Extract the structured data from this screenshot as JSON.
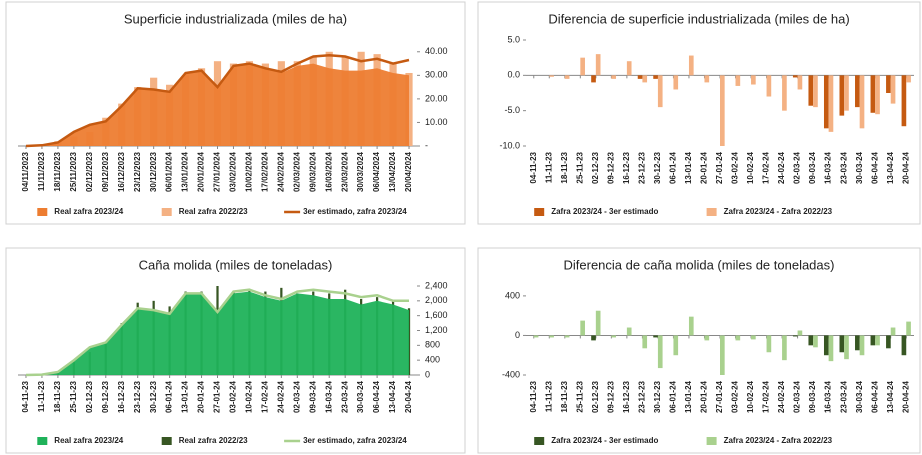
{
  "chart_data": [
    {
      "type": "combo",
      "title": "Superficie industrializada (miles de ha)",
      "categories": [
        "04/11/2023",
        "11/11/2023",
        "18/11/2023",
        "25/11/2023",
        "02/12/2023",
        "09/12/2023",
        "16/12/2023",
        "23/12/2023",
        "30/12/2023",
        "06/01/2024",
        "13/01/2024",
        "20/01/2024",
        "27/01/2024",
        "03/02/2024",
        "10/02/2024",
        "17/02/2024",
        "24/02/2024",
        "02/03/2024",
        "09/03/2024",
        "16/03/2024",
        "23/03/2024",
        "30/03/2024",
        "06/04/2024",
        "13/04/2024",
        "20/04/2024"
      ],
      "series": [
        {
          "name": "Real zafra 2022/23",
          "kind": "bar",
          "color": "#f4b183",
          "values": [
            0,
            0.5,
            2,
            4,
            6,
            12,
            18,
            25,
            29,
            26,
            30,
            33,
            36,
            35,
            36,
            35,
            36,
            36,
            38,
            40,
            38,
            40,
            39,
            35,
            31
          ]
        },
        {
          "name": "Real zafra 2023/24",
          "kind": "area",
          "color": "#ed7d31",
          "values": [
            0,
            0.3,
            1.5,
            6,
            9,
            10.5,
            17,
            24,
            24,
            23,
            31,
            32,
            25,
            34,
            34.5,
            33,
            31,
            34,
            35,
            33,
            32,
            32,
            33,
            31,
            30
          ]
        },
        {
          "name": "3er estimado, zafra 2023/24",
          "kind": "line",
          "color": "#c55a11",
          "values": [
            0,
            0.3,
            1.5,
            6,
            9,
            10.5,
            17,
            24.5,
            24,
            23,
            31,
            32,
            25,
            34,
            35,
            33,
            31.5,
            35,
            38,
            38.5,
            38,
            36,
            37,
            35,
            36.5
          ]
        }
      ],
      "ylim": [
        0,
        45
      ],
      "yticks": [
        {
          "value": 0,
          "label": "-"
        },
        {
          "value": 10,
          "label": "10.00"
        },
        {
          "value": 20,
          "label": "20.00"
        },
        {
          "value": 30,
          "label": "30.00"
        },
        {
          "value": 40,
          "label": "40.00"
        }
      ],
      "grid": false
    },
    {
      "type": "bar",
      "title": "Diferencia de superficie industrializada (miles de ha)",
      "categories": [
        "04-11-23",
        "11-11-23",
        "18-11-23",
        "25-11-23",
        "02-12-23",
        "09-12-23",
        "16-12-23",
        "23-12-23",
        "30-12-23",
        "06-01-24",
        "13-01-24",
        "20-01-24",
        "27-01-24",
        "03-02-24",
        "10-02-24",
        "17-02-24",
        "24-02-24",
        "02-03-24",
        "09-03-24",
        "16-03-24",
        "23-03-24",
        "30-03-24",
        "06-04-24",
        "13-04-24",
        "20-04-24"
      ],
      "series": [
        {
          "name": "Zafra 2023/24 - 3er estimado",
          "color": "#c55a11",
          "values": [
            0,
            0,
            0,
            0,
            -1,
            0,
            0,
            -0.5,
            -0.5,
            0,
            0,
            0,
            0,
            0,
            0,
            0,
            0,
            -0.3,
            -4.3,
            -7.5,
            -5.7,
            -4.5,
            -5.3,
            -2.5,
            -7.2
          ]
        },
        {
          "name": "Zafra 2023/24 - Zafra 2022/23",
          "color": "#f4b183",
          "values": [
            0,
            -0.2,
            -0.5,
            2.5,
            3,
            -0.5,
            2,
            -1,
            -4.5,
            -2,
            2.8,
            -1,
            -10,
            -1.5,
            -1.3,
            -3,
            -5,
            -2,
            -4.5,
            -8,
            -5,
            -7.5,
            -5.5,
            -4,
            -1
          ]
        }
      ],
      "ylim": [
        -10,
        5
      ],
      "yticks": [
        {
          "value": 5,
          "label": "5.0"
        },
        {
          "value": 0,
          "label": "0.0"
        },
        {
          "value": -5,
          "label": "-5.0"
        },
        {
          "value": -10,
          "label": "-10.0"
        }
      ],
      "grid": false
    },
    {
      "type": "combo",
      "title": "Caña molida (miles de toneladas)",
      "categories": [
        "04-11-23",
        "11-11-23",
        "18-11-23",
        "25-11-23",
        "02-12-23",
        "09-12-23",
        "16-12-23",
        "23-12-23",
        "30-12-23",
        "06-01-24",
        "13-01-24",
        "20-01-24",
        "27-01-24",
        "03-02-24",
        "10-02-24",
        "17-02-24",
        "24-02-24",
        "02-03-24",
        "09-03-24",
        "16-03-24",
        "23-03-24",
        "30-03-24",
        "06-04-24",
        "13-04-24",
        "20-04-24"
      ],
      "series": [
        {
          "name": "Real zafra 2022/23",
          "kind": "bar",
          "color": "#375623",
          "values": [
            0,
            30,
            100,
            350,
            620,
            850,
            1400,
            1950,
            2000,
            1850,
            2250,
            2250,
            2400,
            2250,
            2300,
            2250,
            2350,
            2200,
            2250,
            2200,
            2300,
            2050,
            2100,
            2000,
            1800
          ]
        },
        {
          "name": "Real zafra 2023/24",
          "kind": "area",
          "color": "#1fb25a",
          "values": [
            0,
            10,
            80,
            400,
            750,
            880,
            1350,
            1800,
            1750,
            1650,
            2200,
            2200,
            1700,
            2200,
            2250,
            2100,
            2000,
            2200,
            2150,
            2050,
            2050,
            1900,
            2000,
            1900,
            1750
          ]
        },
        {
          "name": "3er estimado, zafra 2023/24",
          "kind": "line",
          "color": "#a9d18e",
          "values": [
            0,
            10,
            80,
            400,
            750,
            880,
            1350,
            1800,
            1750,
            1650,
            2200,
            2200,
            1700,
            2250,
            2300,
            2150,
            2050,
            2250,
            2300,
            2250,
            2200,
            2100,
            2150,
            2000,
            2000
          ]
        }
      ],
      "ylim": [
        0,
        2400
      ],
      "yticks": [
        0,
        400,
        800,
        {
          "value": 1200,
          "label": "1,200"
        },
        {
          "value": 1600,
          "label": "1,600"
        },
        {
          "value": 2000,
          "label": "2,000"
        },
        {
          "value": 2400,
          "label": "2,400"
        }
      ],
      "grid": false
    },
    {
      "type": "bar",
      "title": "Diferencia de caña molida (miles de toneladas)",
      "categories": [
        "04-11-23",
        "11-11-23",
        "18-11-23",
        "25-11-23",
        "02-12-23",
        "09-12-23",
        "16-12-23",
        "23-12-23",
        "30-12-23",
        "06-01-24",
        "13-01-24",
        "20-01-24",
        "27-01-24",
        "03-02-24",
        "10-02-24",
        "17-02-24",
        "24-02-24",
        "02-03-24",
        "09-03-24",
        "16-03-24",
        "23-03-24",
        "30-03-24",
        "06-04-24",
        "13-04-24",
        "20-04-24"
      ],
      "series": [
        {
          "name": "Zafra 2023/24 - 3er estimado",
          "color": "#375623",
          "values": [
            0,
            0,
            0,
            0,
            -50,
            0,
            0,
            0,
            -20,
            0,
            0,
            0,
            0,
            0,
            0,
            0,
            0,
            -10,
            -100,
            -200,
            -170,
            -150,
            -100,
            -130,
            -200
          ]
        },
        {
          "name": "Zafra 2023/24 - Zafra 2022/23",
          "color": "#a9d18e",
          "values": [
            -20,
            -20,
            -20,
            150,
            250,
            -20,
            80,
            -130,
            -330,
            -200,
            190,
            -50,
            -400,
            -50,
            -40,
            -170,
            -250,
            50,
            -120,
            -260,
            -240,
            -200,
            -100,
            80,
            140
          ]
        }
      ],
      "ylim": [
        -400,
        500
      ],
      "yticks": [
        400,
        0,
        -400
      ],
      "grid": false
    }
  ]
}
